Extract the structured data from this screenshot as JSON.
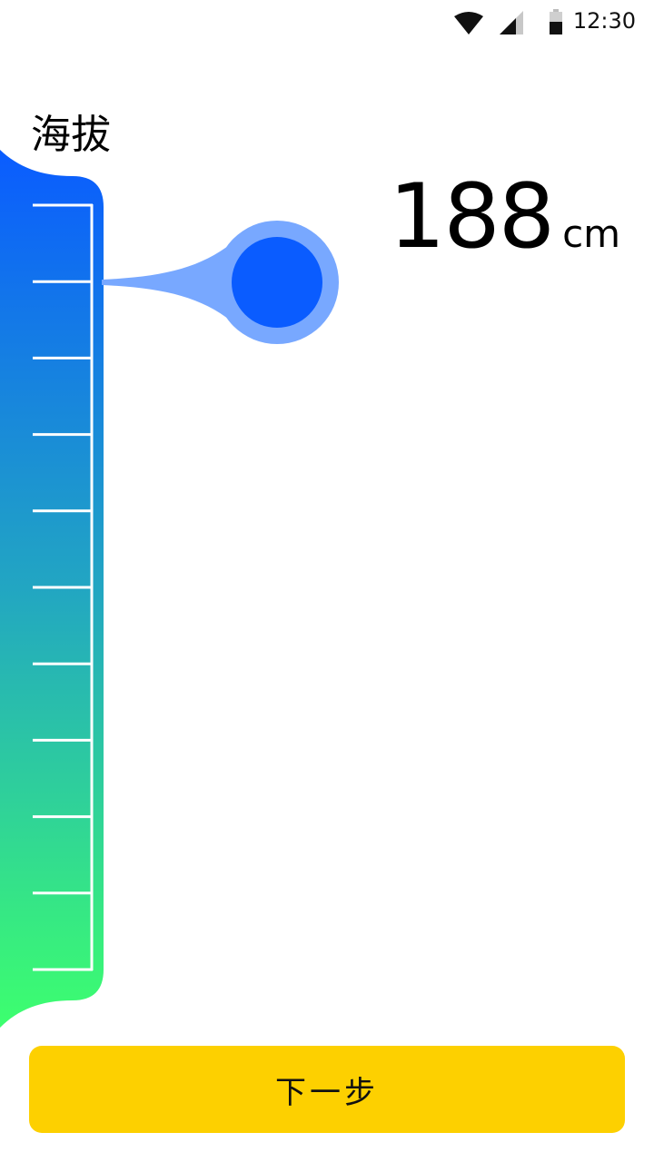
{
  "status_bar": {
    "time": "12:30",
    "icons": [
      "wifi-icon",
      "signal-icon",
      "battery-icon"
    ]
  },
  "page": {
    "title": "海拔"
  },
  "height_picker": {
    "value": "188",
    "unit": "cm",
    "tick_count": 11,
    "gradient_top": "#0A5CFF",
    "gradient_bottom": "#3DFF6E",
    "knob_color": "#0A5CFF",
    "knob_halo_color": "#78A8FF"
  },
  "actions": {
    "next_label": "下一步",
    "next_color": "#FDD000"
  }
}
